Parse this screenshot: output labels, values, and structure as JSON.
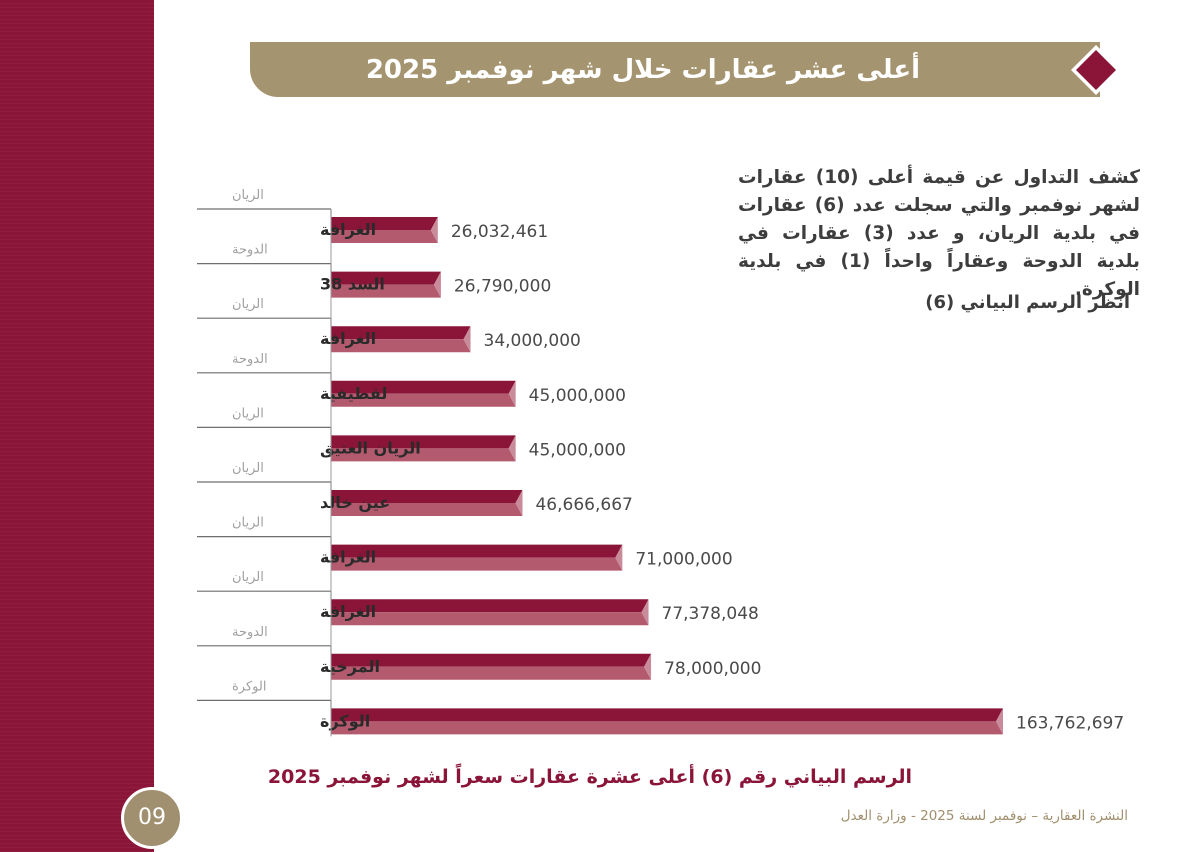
{
  "page": {
    "title": "أعلى عشر عقارات خلال شهر نوفمبر 2025",
    "description": "كشف التداول عن قيمة أعلى (10) عقارات لشهر نوفمبر والتي سجلت عدد (6) عقارات في بلدية الريان، و عدد (3) عقارات في بلدية الدوحة وعقاراً واحداً (1) في بلدية الوكرة.",
    "see_chart": "انظر الرسم البياني (6)",
    "caption": "الرسم البياني رقم (6) أعلى عشرة عقارات سعراً لشهر نوفمبر 2025",
    "footer": "النشرة العقارية – نوفمبر لسنة 2025 - وزارة العدل",
    "page_number": "09"
  },
  "colors": {
    "accent": "#8a1538",
    "accent_light": "#b35a6f",
    "gold": "#a4946f",
    "text": "#3d3d3d",
    "value_text": "#4a4a4a",
    "municipality_text": "#a0a0a0"
  },
  "chart_data": {
    "type": "bar",
    "orientation": "horizontal",
    "title": "الرسم البياني رقم (6) أعلى عشرة عقارات سعراً لشهر نوفمبر 2025",
    "xlim": [
      0,
      163762697
    ],
    "categories": [
      "الغرافة",
      "السد 38",
      "الغرافة",
      "لقطيفية",
      "الريان العتيق",
      "عين خالد",
      "الغرافة",
      "الغرافة",
      "المرخية",
      "الوكرة"
    ],
    "municipalities": [
      "الريان",
      "الدوحة",
      "الريان",
      "الدوحة",
      "الريان",
      "الريان",
      "الريان",
      "الريان",
      "الدوحة",
      "الوكرة"
    ],
    "values": [
      26032461,
      26790000,
      34000000,
      45000000,
      45000000,
      46666667,
      71000000,
      77378048,
      78000000,
      163762697
    ],
    "value_labels": [
      "26,032,461",
      "26,790,000",
      "34,000,000",
      "45,000,000",
      "45,000,000",
      "46,666,667",
      "71,000,000",
      "77,378,048",
      "78,000,000",
      "163,762,697"
    ]
  }
}
